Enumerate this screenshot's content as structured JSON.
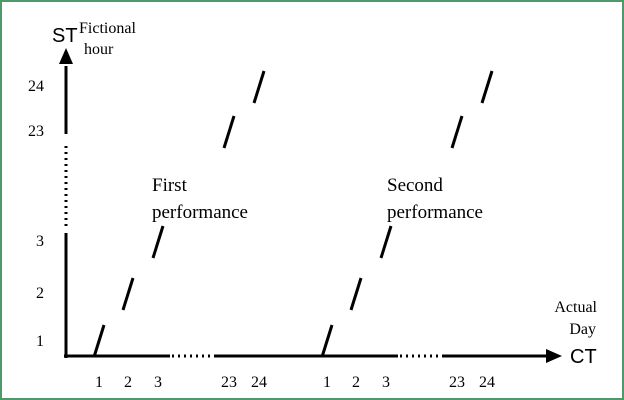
{
  "colors": {
    "border": "#4f9a6c",
    "ink": "#000000",
    "background": "#ffffff"
  },
  "chart_data": {
    "type": "line",
    "y_axis": {
      "symbol": "ST",
      "label_line1": "Fictional",
      "label_line2": "hour",
      "ticks": [
        "1",
        "2",
        "3",
        "23",
        "24"
      ],
      "break_between": [
        "3",
        "23"
      ]
    },
    "x_axis": {
      "symbol": "CT",
      "label_line1": "Actual",
      "label_line2": "Day",
      "ticks": [
        "1",
        "2",
        "3",
        "23",
        "24",
        "1",
        "2",
        "3",
        "23",
        "24"
      ],
      "breaks_between": [
        [
          "3",
          "23"
        ],
        [
          "3",
          "23"
        ]
      ]
    },
    "annotations": [
      {
        "line1": "First",
        "line2": "performance"
      },
      {
        "line1": "Second",
        "line2": "performance"
      }
    ],
    "series": [
      {
        "points": [
          {
            "x": "1",
            "y": "1"
          },
          {
            "x": "2",
            "y": "2"
          },
          {
            "x": "3",
            "y": "3"
          },
          {
            "x": "23",
            "y": "23"
          },
          {
            "x": "24",
            "y": "24"
          }
        ]
      },
      {
        "points": [
          {
            "x": "1",
            "y": "1"
          },
          {
            "x": "2",
            "y": "2"
          },
          {
            "x": "3",
            "y": "3"
          },
          {
            "x": "23",
            "y": "23"
          },
          {
            "x": "24",
            "y": "24"
          }
        ]
      }
    ]
  }
}
